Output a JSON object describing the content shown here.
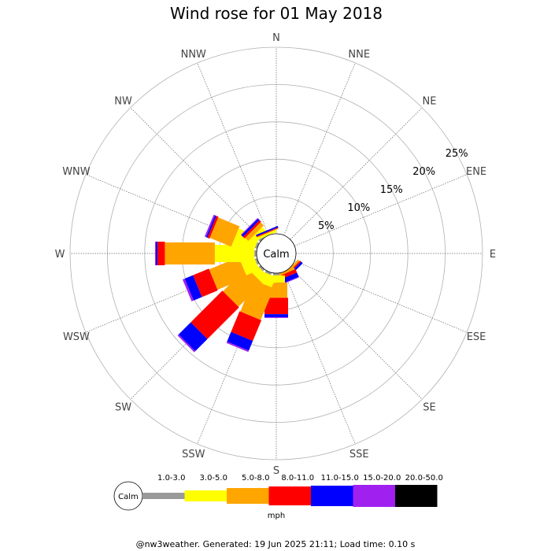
{
  "chart_data": {
    "type": "windrose",
    "title": "Wind rose for 01 May 2018",
    "directions": [
      "N",
      "NNE",
      "NE",
      "ENE",
      "E",
      "ESE",
      "SE",
      "SSE",
      "S",
      "SSW",
      "SW",
      "WSW",
      "W",
      "WNW",
      "NW",
      "NNW"
    ],
    "rings_percent": [
      5,
      10,
      15,
      20,
      25
    ],
    "ring_labels": [
      "5%",
      "10%",
      "15%",
      "20%",
      "25%"
    ],
    "rmax_percent": 25,
    "calm_label": "Calm",
    "calm_percent": 1.5,
    "unit": "mph",
    "bins": [
      {
        "label": "1.0-3.0",
        "color": "#999999"
      },
      {
        "label": "3.0-5.0",
        "color": "#ffff00"
      },
      {
        "label": "5.0-8.0",
        "color": "#ffa500"
      },
      {
        "label": "8.0-11.0",
        "color": "#ff0000"
      },
      {
        "label": "11.0-15.0",
        "color": "#0000ff"
      },
      {
        "label": "15.0-20.0",
        "color": "#a020f0"
      },
      {
        "label": "20.0-50.0",
        "color": "#000000"
      }
    ],
    "series": [
      {
        "direction": "N",
        "values": [
          0,
          0,
          0,
          0,
          0,
          0,
          0
        ]
      },
      {
        "direction": "NNE",
        "values": [
          0,
          0,
          0,
          0,
          0,
          0,
          0
        ]
      },
      {
        "direction": "NE",
        "values": [
          0,
          0,
          0,
          0,
          0,
          0,
          0
        ]
      },
      {
        "direction": "ENE",
        "values": [
          0,
          0,
          0,
          0,
          0,
          0,
          0
        ]
      },
      {
        "direction": "E",
        "values": [
          0,
          0,
          0,
          0,
          0,
          0,
          0
        ]
      },
      {
        "direction": "ESE",
        "values": [
          0,
          0,
          0,
          0,
          0,
          0,
          0
        ]
      },
      {
        "direction": "SE",
        "values": [
          0,
          0,
          0.3,
          0.2,
          0.3,
          0,
          0
        ]
      },
      {
        "direction": "SSE",
        "values": [
          0,
          0,
          0.3,
          0.5,
          0.6,
          0.1,
          0
        ]
      },
      {
        "direction": "S",
        "values": [
          0.3,
          1.0,
          2.0,
          2.2,
          0.4,
          0.1,
          0
        ]
      },
      {
        "direction": "SSW",
        "values": [
          0.3,
          1.5,
          4.6,
          3.0,
          1.4,
          0.2,
          0
        ]
      },
      {
        "direction": "SW",
        "values": [
          0.3,
          1.2,
          4.5,
          6.0,
          2.3,
          0.2,
          0
        ]
      },
      {
        "direction": "WSW",
        "values": [
          0.3,
          1.9,
          4.3,
          2.3,
          1.2,
          0.3,
          0
        ]
      },
      {
        "direction": "W",
        "values": [
          0.3,
          5.3,
          6.7,
          1.0,
          0.2,
          0.1,
          0
        ]
      },
      {
        "direction": "WNW",
        "values": [
          0.3,
          3.0,
          3.1,
          0.3,
          0.2,
          0.2,
          0
        ]
      },
      {
        "direction": "NW",
        "values": [
          0.3,
          0.9,
          0.6,
          0.3,
          0.3,
          0.1,
          0
        ]
      },
      {
        "direction": "NNW",
        "values": [
          0,
          0.3,
          0.1,
          0.1,
          0.2,
          0,
          0
        ]
      }
    ]
  },
  "footer": "@nw3weather. Generated: 19 Jun 2025 21:11; Load time: 0.10 s"
}
